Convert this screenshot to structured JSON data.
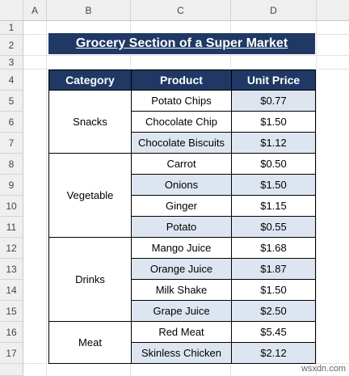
{
  "columns": [
    "A",
    "B",
    "C",
    "D"
  ],
  "rows": [
    "1",
    "2",
    "3",
    "4",
    "5",
    "6",
    "7",
    "8",
    "9",
    "10",
    "11",
    "12",
    "13",
    "14",
    "15",
    "16",
    "17"
  ],
  "title": "Grocery Section of  a Super Market",
  "headers": {
    "category": "Category",
    "product": "Product",
    "price": "Unit Price"
  },
  "categories": [
    "Snacks",
    "Vegetable",
    "Drinks",
    "Meat"
  ],
  "items": [
    {
      "product": "Potato Chips",
      "price": "$0.77"
    },
    {
      "product": "Chocolate Chip",
      "price": "$1.50"
    },
    {
      "product": "Chocolate Biscuits",
      "price": "$1.12"
    },
    {
      "product": "Carrot",
      "price": "$0.50"
    },
    {
      "product": "Onions",
      "price": "$1.50"
    },
    {
      "product": "Ginger",
      "price": "$1.15"
    },
    {
      "product": "Potato",
      "price": "$0.55"
    },
    {
      "product": "Mango Juice",
      "price": "$1.68"
    },
    {
      "product": "Orange Juice",
      "price": "$1.87"
    },
    {
      "product": "Milk Shake",
      "price": "$1.50"
    },
    {
      "product": "Grape Juice",
      "price": "$2.50"
    },
    {
      "product": "Red Meat",
      "price": "$5.45"
    },
    {
      "product": "Skinless Chicken",
      "price": "$2.12"
    }
  ],
  "watermark": "wsxdn.com"
}
